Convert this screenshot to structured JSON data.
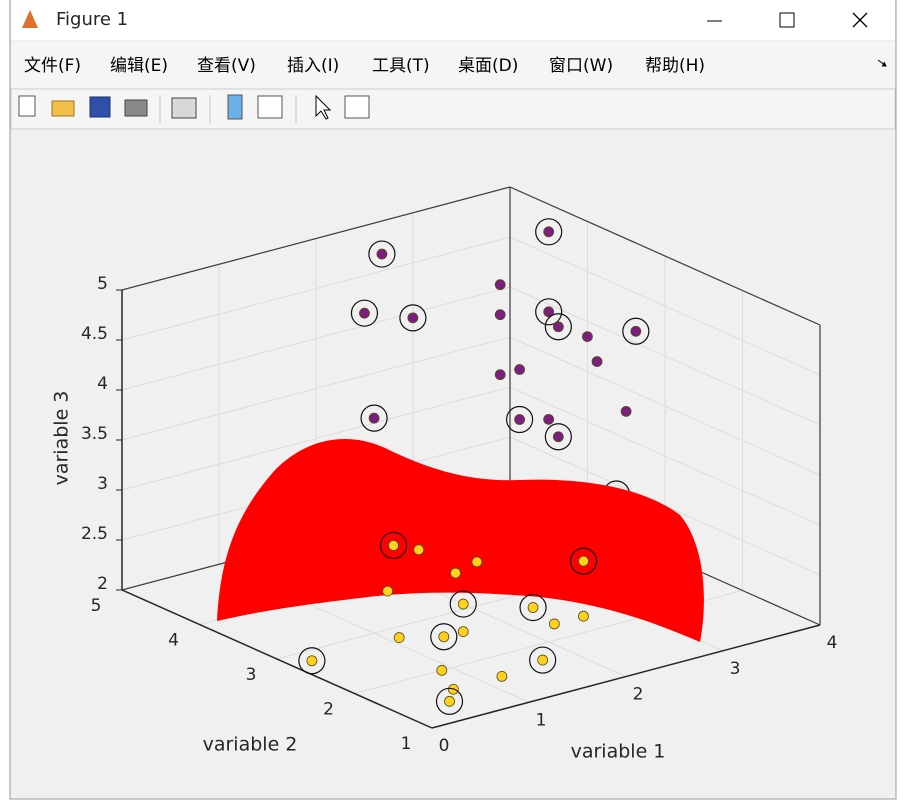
{
  "window": {
    "title": "Figure 1",
    "menu": [
      "文件(F)",
      "编辑(E)",
      "查看(V)",
      "插入(I)",
      "工具(T)",
      "桌面(D)",
      "窗口(W)",
      "帮助(H)"
    ]
  },
  "chart_data": {
    "type": "scatter3d",
    "xlabel": "variable 1",
    "ylabel": "variable 2",
    "zlabel": "variable 3",
    "xlim": [
      0,
      4
    ],
    "xticks": [
      0,
      1,
      2,
      3,
      4
    ],
    "ylim": [
      1,
      5
    ],
    "yticks": [
      1,
      2,
      3,
      4,
      5
    ],
    "zlim": [
      2,
      5
    ],
    "zticks": [
      2,
      2.5,
      3,
      3.5,
      4,
      4.5,
      5
    ],
    "grid": true,
    "series": [
      {
        "color": "#7b1f7e",
        "ring": false,
        "x": [
          3.1,
          3.1,
          3.2,
          2.9,
          3.3,
          3.1,
          2.8,
          3.2
        ],
        "y": [
          4.0,
          4.0,
          3.0,
          2.5,
          4.0,
          4.0,
          2.0,
          3.5
        ],
        "z": [
          4.6,
          4.3,
          4.4,
          4.4,
          3.7,
          3.7,
          4.1,
          3.4
        ]
      },
      {
        "color": "#7b1f7e",
        "ring": true,
        "x": [
          2.2,
          2.1,
          2.2,
          1.8,
          3.6,
          3.6,
          3.3,
          3.3,
          3.3,
          3.3,
          2.7
        ],
        "y": [
          4.4,
          4.5,
          4.0,
          4.0,
          4.0,
          4.0,
          3.5,
          2.5,
          4.0,
          3.5,
          2.0
        ],
        "z": [
          5.0,
          4.4,
          4.5,
          3.6,
          5.0,
          4.2,
          4.3,
          4.6,
          3.2,
          3.2,
          3.3
        ]
      },
      {
        "color": "#ffd21a",
        "ring": false,
        "x": [
          2.5,
          2.4,
          2.7,
          1.7,
          1.6,
          1.1,
          2.3,
          2.6,
          0.9,
          1.2,
          0.7
        ],
        "y": [
          4.3,
          3.7,
          3.8,
          3.7,
          2.6,
          2.8,
          2.3,
          2.3,
          2.0,
          1.6,
          1.6
        ],
        "z": [
          2,
          2,
          2,
          2,
          2,
          2,
          2,
          2,
          2,
          2,
          2
        ]
      },
      {
        "color": "#ffd21a",
        "ring": true,
        "x": [
          2.4,
          3.4,
          2.0,
          2.4,
          1.4,
          0.2,
          1.7,
          0.5
        ],
        "y": [
          4.5,
          3.3,
          3.1,
          2.7,
          2.6,
          2.8,
          1.7,
          1.4
        ],
        "z": [
          2,
          2,
          2,
          2,
          2,
          2,
          2,
          2
        ]
      }
    ]
  }
}
